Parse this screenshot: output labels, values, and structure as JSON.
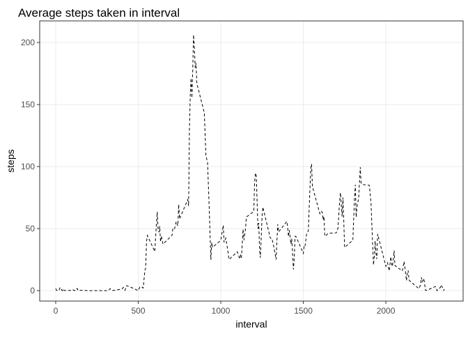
{
  "chart_data": {
    "type": "line",
    "title": "Average steps taken in interval",
    "x_label": "interval",
    "y_label": "steps",
    "x": [
      0,
      5,
      10,
      15,
      20,
      25,
      30,
      35,
      40,
      45,
      50,
      55,
      100,
      105,
      110,
      115,
      120,
      125,
      130,
      135,
      140,
      145,
      150,
      200,
      230,
      245,
      300,
      310,
      320,
      330,
      335,
      340,
      345,
      400,
      410,
      420,
      430,
      440,
      450,
      500,
      510,
      520,
      530,
      540,
      545,
      550,
      555,
      600,
      610,
      615,
      620,
      625,
      630,
      635,
      640,
      650,
      700,
      705,
      710,
      720,
      730,
      740,
      745,
      750,
      800,
      805,
      810,
      815,
      820,
      825,
      830,
      835,
      840,
      845,
      850,
      855,
      900,
      910,
      920,
      930,
      935,
      940,
      945,
      950,
      1000,
      1015,
      1020,
      1030,
      1040,
      1050,
      1100,
      1115,
      1120,
      1125,
      1135,
      1140,
      1150,
      1155,
      1200,
      1205,
      1210,
      1215,
      1225,
      1230,
      1235,
      1240,
      1250,
      1255,
      1300,
      1310,
      1320,
      1335,
      1340,
      1345,
      1350,
      1400,
      1405,
      1410,
      1415,
      1425,
      1430,
      1440,
      1445,
      1450,
      1455,
      1500,
      1505,
      1510,
      1520,
      1530,
      1545,
      1550,
      1555,
      1600,
      1605,
      1615,
      1620,
      1625,
      1630,
      1640,
      1650,
      1700,
      1710,
      1720,
      1725,
      1730,
      1735,
      1740,
      1745,
      1750,
      1800,
      1810,
      1815,
      1820,
      1825,
      1835,
      1845,
      1850,
      1855,
      1900,
      1910,
      1920,
      1925,
      1930,
      1935,
      1940,
      1945,
      1950,
      2000,
      2010,
      2020,
      2030,
      2035,
      2040,
      2050,
      2055,
      2100,
      2110,
      2115,
      2125,
      2130,
      2135,
      2140,
      2145,
      2200,
      2210,
      2215,
      2220,
      2230,
      2240,
      2245,
      2300,
      2310,
      2315,
      2330,
      2335,
      2345,
      2350,
      2355
    ],
    "series": [
      {
        "color": "#000000",
        "values": [
          1.7,
          0.3,
          0.1,
          0.2,
          0.1,
          2.1,
          0.5,
          0.9,
          0,
          1.5,
          0.3,
          0.1,
          0.3,
          0.7,
          0.2,
          0.3,
          0,
          1.1,
          1.8,
          0.2,
          0.2,
          0.4,
          0.3,
          0,
          0,
          0,
          0,
          0,
          0.2,
          1.6,
          0.6,
          0.5,
          0.1,
          1.2,
          2.6,
          0.3,
          4.1,
          3.5,
          3.1,
          0,
          3.0,
          3.3,
          2.1,
          16,
          18.3,
          39.5,
          44.5,
          31.5,
          53.8,
          63.5,
          50,
          47,
          52,
          39.3,
          44,
          37.5,
          44,
          44.8,
          50.5,
          49.9,
          55.7,
          52.3,
          69.5,
          57.8,
          73.4,
          68.2,
          129.4,
          157.5,
          171.2,
          155.4,
          177.3,
          206.2,
          195.9,
          179.6,
          183.4,
          167,
          143.5,
          109,
          103,
          66,
          45,
          24.8,
          38.8,
          34.9,
          40.6,
          52.7,
          38.9,
          42.3,
          34.5,
          25.1,
          31.4,
          25.5,
          28.5,
          26.5,
          49.5,
          40.7,
          50,
          59.3,
          63.9,
          87.7,
          94.8,
          92.8,
          50,
          54.5,
          32.4,
          26.5,
          60,
          67.3,
          42.3,
          42,
          36,
          25.1,
          39.9,
          53.5,
          47.3,
          55.8,
          51.2,
          43.6,
          48.7,
          37.5,
          41.8,
          17.1,
          26.1,
          43.8,
          43.7,
          30,
          36.1,
          35.5,
          45.9,
          48.1,
          98.7,
          102.1,
          83.9,
          62.1,
          64.1,
          63.2,
          56.9,
          59.8,
          43.9,
          44.7,
          46.2,
          46.6,
          50.5,
          72.7,
          78.9,
          68.9,
          59.7,
          75.1,
          56.5,
          34.8,
          40.7,
          74.7,
          85.3,
          59.3,
          67.8,
          74.2,
          99.5,
          86.6,
          85.6,
          84.9,
          71,
          36.3,
          20.7,
          27.4,
          40,
          30.2,
          25.5,
          45.7,
          19.6,
          22.5,
          15.9,
          27.3,
          21.3,
          19.5,
          32.3,
          20.2,
          15.9,
          23.5,
          19.2,
          8.0,
          14.7,
          16.3,
          8.7,
          7.8,
          1.6,
          4.6,
          10.7,
          7.2,
          9.8,
          0.3,
          0.1,
          3.3,
          0,
          0.8,
          2.6,
          4.7,
          1.6,
          0.2,
          1.1
        ]
      }
    ],
    "xlim": [
      -97,
      2468
    ],
    "ylim": [
      -8.4,
      217.4
    ],
    "xticks": [
      0,
      500,
      1000,
      1500,
      2000
    ],
    "yticks": [
      0,
      50,
      100,
      150,
      200
    ],
    "grid": true,
    "line_style": "dashed"
  }
}
